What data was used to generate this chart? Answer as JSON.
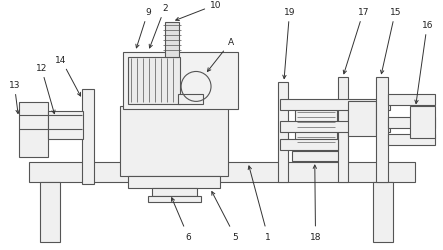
{
  "bg": "#ffffff",
  "lc": "#555555",
  "fc": "#f5f5f5",
  "fc2": "#e8e8e8",
  "lw": 0.8,
  "fig_w": 4.43,
  "fig_h": 2.51,
  "dpi": 100
}
